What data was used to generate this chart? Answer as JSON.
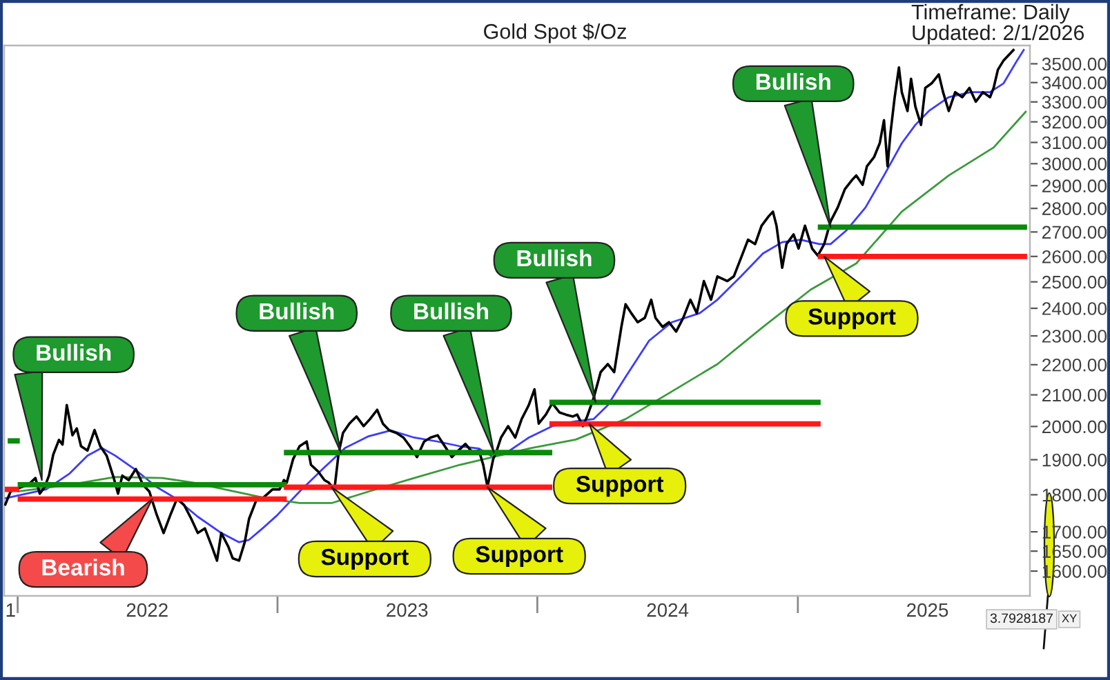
{
  "chart_data": {
    "type": "line",
    "title": "Gold Spot $/Oz",
    "xlim": [
      "2021-12-13",
      "2025-11-23"
    ],
    "xticks": [
      {
        "value": "2021-12-22",
        "label": "1"
      },
      {
        "value": "2022-01-01",
        "label": null
      },
      {
        "value": "2022-07-02",
        "label": "2022"
      },
      {
        "value": "2023-01-01",
        "label": null
      },
      {
        "value": "2023-07-02",
        "label": "2023"
      },
      {
        "value": "2024-01-01",
        "label": null
      },
      {
        "value": "2024-07-02",
        "label": "2024"
      },
      {
        "value": "2025-01-01",
        "label": null
      },
      {
        "value": "2025-07-02",
        "label": "2025"
      }
    ],
    "log": true,
    "ylim": [
      1540,
      3600
    ],
    "yticks": [
      {
        "value": 1600,
        "label": "1600.00"
      },
      {
        "value": 1650,
        "label": "1650.00"
      },
      {
        "value": 1700,
        "label": "1700.00"
      },
      {
        "value": 1800,
        "label": "1800.00"
      },
      {
        "value": 1900,
        "label": "1900.00"
      },
      {
        "value": 2000,
        "label": "2000.00"
      },
      {
        "value": 2100,
        "label": "2100.00"
      },
      {
        "value": 2200,
        "label": "2200.00"
      },
      {
        "value": 2300,
        "label": "2300.00"
      },
      {
        "value": 2400,
        "label": "2400.00"
      },
      {
        "value": 2500,
        "label": "2500.00"
      },
      {
        "value": 2600,
        "label": "2600.00"
      },
      {
        "value": 2700,
        "label": "2700.00"
      },
      {
        "value": 2800,
        "label": "2800.00"
      },
      {
        "value": 2900,
        "label": "2900.00"
      },
      {
        "value": 3000,
        "label": "3000.00"
      },
      {
        "value": 3100,
        "label": "3100.00"
      },
      {
        "value": 3200,
        "label": "3200.00"
      },
      {
        "value": 3300,
        "label": "3300.00"
      },
      {
        "value": 3400,
        "label": "3400.00"
      },
      {
        "value": 3500,
        "label": "3500.00"
      }
    ],
    "series": [
      {
        "color": "#000000",
        "x": [
          "2021-12-14",
          "2021-12-22",
          "2022-01-03",
          "2022-01-16",
          "2022-01-26",
          "2022-02-01",
          "2022-02-08",
          "2022-02-14",
          "2022-02-20",
          "2022-02-28",
          "2022-03-05",
          "2022-03-11",
          "2022-03-19",
          "2022-03-25",
          "2022-03-31",
          "2022-04-09",
          "2022-04-19",
          "2022-04-27",
          "2022-05-06",
          "2022-05-16",
          "2022-05-22",
          "2022-05-28",
          "2022-06-06",
          "2022-06-16",
          "2022-06-26",
          "2022-07-05",
          "2022-07-15",
          "2022-07-25",
          "2022-08-04",
          "2022-08-13",
          "2022-08-23",
          "2022-09-02",
          "2022-09-11",
          "2022-09-21",
          "2022-10-01",
          "2022-10-08",
          "2022-10-14",
          "2022-10-24",
          "2022-10-30",
          "2022-11-08",
          "2022-11-16",
          "2022-11-22",
          "2022-12-02",
          "2022-12-11",
          "2022-12-25",
          "2023-01-04",
          "2023-01-10",
          "2023-01-14",
          "2023-01-23",
          "2023-02-01",
          "2023-02-11",
          "2023-02-17",
          "2023-02-27",
          "2023-03-08",
          "2023-03-14",
          "2023-03-22",
          "2023-03-28",
          "2023-04-03",
          "2023-04-12",
          "2023-04-22",
          "2023-05-02",
          "2023-05-11",
          "2023-05-21",
          "2023-05-29",
          "2023-06-07",
          "2023-06-17",
          "2023-06-27",
          "2023-07-06",
          "2023-07-16",
          "2023-07-26",
          "2023-08-04",
          "2023-08-14",
          "2023-08-24",
          "2023-09-03",
          "2023-09-12",
          "2023-09-22",
          "2023-10-02",
          "2023-10-11",
          "2023-10-17",
          "2023-10-23",
          "2023-10-31",
          "2023-11-05",
          "2023-11-11",
          "2023-11-21",
          "2023-12-01",
          "2023-12-10",
          "2023-12-20",
          "2023-12-28",
          "2024-01-03",
          "2024-01-13",
          "2024-01-22",
          "2024-02-01",
          "2024-02-10",
          "2024-02-20",
          "2024-02-26",
          "2024-03-05",
          "2024-03-11",
          "2024-03-20",
          "2024-03-30",
          "2024-04-09",
          "2024-04-18",
          "2024-04-28",
          "2024-05-04",
          "2024-05-12",
          "2024-05-21",
          "2024-05-31",
          "2024-06-09",
          "2024-06-15",
          "2024-06-25",
          "2024-07-04",
          "2024-07-14",
          "2024-07-24",
          "2024-08-03",
          "2024-08-12",
          "2024-08-22",
          "2024-09-01",
          "2024-09-10",
          "2024-09-24",
          "2024-10-03",
          "2024-10-13",
          "2024-10-23",
          "2024-11-02",
          "2024-11-11",
          "2024-11-21",
          "2024-11-27",
          "2024-12-02",
          "2024-12-10",
          "2024-12-16",
          "2024-12-26",
          "2025-01-02",
          "2025-01-11",
          "2025-01-21",
          "2025-01-29",
          "2025-02-07",
          "2025-02-16",
          "2025-02-26",
          "2025-03-08",
          "2025-03-18",
          "2025-03-24",
          "2025-04-02",
          "2025-04-08",
          "2025-04-18",
          "2025-04-26",
          "2025-05-02",
          "2025-05-07",
          "2025-05-11",
          "2025-05-17",
          "2025-05-23",
          "2025-05-27",
          "2025-06-04",
          "2025-06-09",
          "2025-06-15",
          "2025-06-23",
          "2025-06-29",
          "2025-07-08",
          "2025-07-18",
          "2025-07-24",
          "2025-08-01",
          "2025-08-10",
          "2025-08-20",
          "2025-08-30",
          "2025-09-08",
          "2025-09-18",
          "2025-09-28",
          "2025-10-03",
          "2025-10-09",
          "2025-10-17",
          "2025-11-01"
        ],
        "values": [
          1770,
          1809,
          1819,
          1828,
          1847,
          1803,
          1822,
          1854,
          1915,
          1959,
          1945,
          2067,
          1973,
          1994,
          1940,
          1927,
          1989,
          1940,
          1912,
          1847,
          1803,
          1854,
          1841,
          1873,
          1828,
          1809,
          1747,
          1697,
          1747,
          1790,
          1771,
          1734,
          1697,
          1709,
          1661,
          1626,
          1697,
          1661,
          1632,
          1626,
          1673,
          1734,
          1784,
          1790,
          1815,
          1815,
          1841,
          1834,
          1902,
          1940,
          1954,
          1885,
          1866,
          1841,
          1834,
          1815,
          1921,
          1980,
          2009,
          2031,
          2001,
          2023,
          2052,
          2009,
          1988,
          1980,
          1966,
          1940,
          1908,
          1954,
          1966,
          1973,
          1940,
          1908,
          1927,
          1947,
          1921,
          1927,
          1885,
          1822,
          1902,
          1927,
          1966,
          2001,
          1966,
          2023,
          2067,
          2118,
          2009,
          2037,
          2073,
          2044,
          2037,
          2031,
          2037,
          2001,
          2031,
          2089,
          2175,
          2202,
          2175,
          2331,
          2415,
          2382,
          2349,
          2365,
          2432,
          2365,
          2332,
          2349,
          2315,
          2365,
          2432,
          2382,
          2503,
          2432,
          2521,
          2503,
          2521,
          2593,
          2668,
          2650,
          2726,
          2766,
          2786,
          2726,
          2555,
          2650,
          2690,
          2632,
          2726,
          2632,
          2603,
          2650,
          2745,
          2804,
          2884,
          2925,
          2946,
          2904,
          2988,
          3030,
          3096,
          3208,
          2988,
          3142,
          3324,
          3480,
          3350,
          3254,
          3420,
          3277,
          3185,
          3372,
          3396,
          3443,
          3350,
          3254,
          3350,
          3324,
          3372,
          3301,
          3350,
          3324,
          3372,
          3468,
          3518,
          3580
        ]
      },
      {
        "color": "#3b3bff",
        "x": [
          "2021-12-14",
          "2022-02-10",
          "2022-03-15",
          "2022-04-09",
          "2022-04-29",
          "2022-05-18",
          "2022-06-14",
          "2022-07-15",
          "2022-08-11",
          "2022-09-11",
          "2022-10-14",
          "2022-11-08",
          "2022-11-22",
          "2022-12-11",
          "2022-12-31",
          "2023-02-01",
          "2023-03-04",
          "2023-04-06",
          "2023-05-09",
          "2023-06-09",
          "2023-07-12",
          "2023-08-14",
          "2023-09-14",
          "2023-10-11",
          "2023-10-31",
          "2023-11-19",
          "2023-12-20",
          "2024-01-22",
          "2024-02-24",
          "2024-03-20",
          "2024-04-09",
          "2024-05-04",
          "2024-06-06",
          "2024-07-08",
          "2024-08-16",
          "2024-09-10",
          "2024-10-13",
          "2024-11-13",
          "2024-12-10",
          "2025-01-05",
          "2025-01-31",
          "2025-02-16",
          "2025-03-10",
          "2025-04-06",
          "2025-05-02",
          "2025-05-27",
          "2025-06-15",
          "2025-07-04",
          "2025-08-01",
          "2025-09-01",
          "2025-09-28",
          "2025-10-17",
          "2025-11-05",
          "2025-11-15"
        ],
        "values": [
          1790,
          1815,
          1860,
          1912,
          1935,
          1912,
          1873,
          1822,
          1790,
          1740,
          1697,
          1673,
          1679,
          1709,
          1743,
          1809,
          1870,
          1935,
          1970,
          1988,
          1966,
          1954,
          1940,
          1933,
          1908,
          1921,
          1966,
          2001,
          2016,
          2023,
          2067,
          2159,
          2283,
          2349,
          2382,
          2432,
          2521,
          2612,
          2658,
          2668,
          2650,
          2650,
          2706,
          2804,
          2946,
          3096,
          3185,
          3254,
          3324,
          3350,
          3350,
          3396,
          3518,
          3580
        ]
      },
      {
        "color": "#3a9a3a",
        "x": [
          "2022-01-01",
          "2022-03-15",
          "2022-05-18",
          "2022-07-23",
          "2022-09-05",
          "2022-10-28",
          "2022-12-17",
          "2023-02-01",
          "2023-03-18",
          "2023-05-09",
          "2023-07-12",
          "2023-09-14",
          "2023-10-31",
          "2023-12-20",
          "2024-02-24",
          "2024-05-04",
          "2024-07-08",
          "2024-09-10",
          "2024-11-13",
          "2025-01-19",
          "2025-03-24",
          "2025-05-27",
          "2025-08-01",
          "2025-10-03",
          "2025-11-18"
        ],
        "values": [
          1809,
          1828,
          1850,
          1847,
          1834,
          1811,
          1790,
          1777,
          1777,
          1809,
          1847,
          1885,
          1908,
          1933,
          1960,
          2023,
          2111,
          2202,
          2332,
          2470,
          2572,
          2786,
          2946,
          3076,
          3254
        ]
      },
      {
        "color": "#ff1a1a",
        "x": [
          "2021-12-14",
          "2022-01-03"
        ],
        "values": [
          1815,
          1815
        ]
      },
      {
        "color": "#0b8a0b",
        "x": [
          "2021-12-18",
          "2022-01-04"
        ],
        "values": [
          1956,
          1956
        ]
      },
      {
        "color": "#0b8a0b",
        "x": [
          "2022-01-01",
          "2023-01-14"
        ],
        "values": [
          1828,
          1828
        ]
      },
      {
        "color": "#ff1a1a",
        "x": [
          "2022-01-01",
          "2023-01-14"
        ],
        "values": [
          1788,
          1788
        ]
      },
      {
        "color": "#0b8a0b",
        "x": [
          "2023-01-10",
          "2024-01-22"
        ],
        "values": [
          1921,
          1921
        ]
      },
      {
        "color": "#ff1a1a",
        "x": [
          "2023-01-10",
          "2024-01-22"
        ],
        "values": [
          1821,
          1821
        ]
      },
      {
        "color": "#0b8a0b",
        "x": [
          "2024-01-18",
          "2025-02-02"
        ],
        "values": [
          2076,
          2076
        ]
      },
      {
        "color": "#ff1a1a",
        "x": [
          "2024-01-18",
          "2025-02-02"
        ],
        "values": [
          2008,
          2008
        ]
      },
      {
        "color": "#0b8a0b",
        "x": [
          "2025-01-29",
          "2025-11-19"
        ],
        "values": [
          2720,
          2720
        ]
      },
      {
        "color": "#ff1a1a",
        "x": [
          "2025-01-29",
          "2025-11-19"
        ],
        "values": [
          2600,
          2600
        ]
      }
    ],
    "annotations": [
      "Timeframe: Daily",
      "Updated: 2/1/2026",
      {
        "text": "Bullish",
        "x": "2022-02-04",
        "y": 1841
      },
      {
        "text": "Bearish",
        "x": "2022-07-09",
        "y": 1788
      },
      {
        "text": "Support",
        "x": "2023-03-18",
        "y": 1821
      },
      {
        "text": "Bullish",
        "x": "2023-03-31",
        "y": 1921
      },
      {
        "text": "Support",
        "x": "2023-10-23",
        "y": 1821
      },
      {
        "text": "Bullish",
        "x": "2023-11-01",
        "y": 1921
      },
      {
        "text": "Support",
        "x": "2024-03-14",
        "y": 2008
      },
      {
        "text": "Bullish",
        "x": "2024-03-23",
        "y": 2076
      },
      {
        "text": "Support",
        "x": "2025-02-07",
        "y": 2600
      },
      {
        "text": "Bullish",
        "x": "2025-02-16",
        "y": 2720
      },
      "3.7928187",
      "XY"
    ]
  }
}
